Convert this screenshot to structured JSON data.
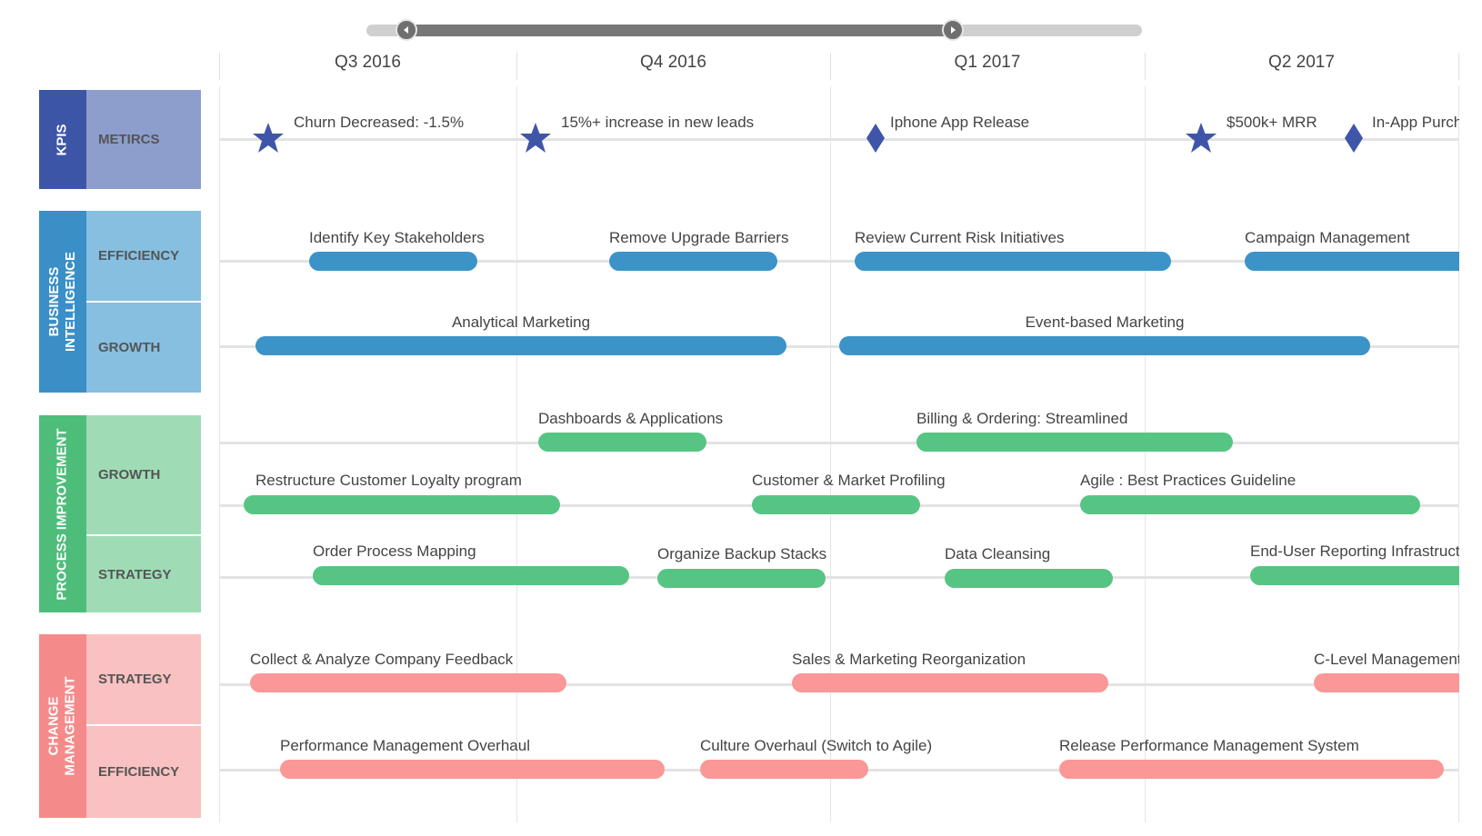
{
  "timeline": {
    "quarters": [
      "Q3 2016",
      "Q4 2016",
      "Q1 2017",
      "Q2 2017"
    ]
  },
  "colors": {
    "kpi_dark": "#3d55a6",
    "kpi_light": "#8d9ecd",
    "bi_dark": "#3a8fc7",
    "bi_light": "#86bfe0",
    "bi_bar": "#3c93c8",
    "pi_dark": "#4ebd7a",
    "pi_light": "#9fdcb6",
    "pi_bar": "#56c584",
    "cm_dark": "#f58a8a",
    "cm_light": "#f9c1c1",
    "cm_bar": "#fa9797",
    "milestone": "#3f56a8"
  },
  "groups": {
    "kpis": {
      "label": "KPIS",
      "rows": [
        "METIRCS"
      ]
    },
    "bi": {
      "label": "BUSINESS\nINTELLIGENCE",
      "rows": [
        "EFFICIENCY",
        "GROWTH"
      ]
    },
    "pi": {
      "label": "PROCESS IMPROVEMENT",
      "rows": [
        "GROWTH",
        "STRATEGY"
      ]
    },
    "cm": {
      "label": "CHANGE\nMANAGEMENT",
      "rows": [
        "STRATEGY",
        "EFFICIENCY"
      ]
    }
  },
  "milestones": [
    {
      "label": "Churn Decreased: -1.5%",
      "icon": "star-icon"
    },
    {
      "label": "15%+ increase in new leads",
      "icon": "star-icon"
    },
    {
      "label": "Iphone App Release",
      "icon": "diamond-icon"
    },
    {
      "label": "$500k+ MRR",
      "icon": "star-icon"
    },
    {
      "label": "In-App Purchases",
      "icon": "diamond-icon"
    }
  ],
  "tasks": {
    "bi_efficiency": [
      "Identify Key Stakeholders",
      "Remove Upgrade Barriers",
      "Review Current Risk Initiatives",
      "Campaign Management"
    ],
    "bi_growth": [
      "Analytical Marketing",
      "Event-based Marketing"
    ],
    "pi_growth_a": [
      "Dashboards & Applications",
      "Billing & Ordering: Streamlined"
    ],
    "pi_growth_b": [
      "Restructure Customer Loyalty program",
      "Customer & Market Profiling",
      "Agile : Best Practices Guideline"
    ],
    "pi_strategy": [
      "Order Process Mapping",
      "Organize Backup Stacks",
      "Data Cleansing",
      "End-User Reporting Infrastructure"
    ],
    "cm_strategy": [
      "Collect & Analyze Company Feedback",
      "Sales & Marketing Reorganization",
      "C-Level Management"
    ],
    "cm_efficiency": [
      "Performance Management Overhaul",
      "Culture Overhaul (Switch to Agile)",
      "Release Performance Management System"
    ]
  }
}
